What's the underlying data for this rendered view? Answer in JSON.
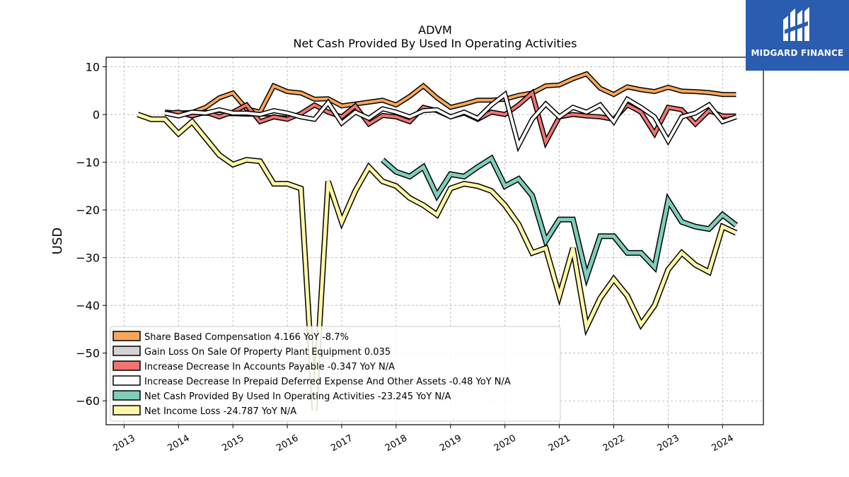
{
  "chart_data": {
    "type": "line",
    "title": "ADVM",
    "subtitle": "Net Cash Provided By Used In Operating Activities",
    "ylabel": "USD",
    "xlabel": "",
    "ylim": [
      -65,
      12
    ],
    "xlim": [
      2012.67,
      2024.75
    ],
    "yticks": [
      10,
      0,
      -10,
      -20,
      -30,
      -40,
      -50,
      -60
    ],
    "xticks": [
      "2013",
      "2014",
      "2015",
      "2016",
      "2017",
      "2018",
      "2019",
      "2020",
      "2021",
      "2022",
      "2023",
      "2024"
    ],
    "grid": true,
    "legend_position": "lower-left",
    "series": [
      {
        "name": "Share Based Compensation",
        "legend": "Share Based Compensation  4.166 YoY -8.7%",
        "color": "#f9a65a",
        "width": 4,
        "points": [
          [
            2013.75,
            0.5
          ],
          [
            2014.0,
            0.3
          ],
          [
            2014.25,
            0.4
          ],
          [
            2014.5,
            1.5
          ],
          [
            2014.75,
            3.5
          ],
          [
            2015.0,
            4.5
          ],
          [
            2015.25,
            1.2
          ],
          [
            2015.5,
            0.5
          ],
          [
            2015.75,
            6.0
          ],
          [
            2016.0,
            4.8
          ],
          [
            2016.25,
            4.5
          ],
          [
            2016.5,
            3.2
          ],
          [
            2016.75,
            3.3
          ],
          [
            2017.0,
            1.8
          ],
          [
            2017.25,
            2.2
          ],
          [
            2017.5,
            2.6
          ],
          [
            2017.75,
            3.0
          ],
          [
            2018.0,
            2.0
          ],
          [
            2018.25,
            3.8
          ],
          [
            2018.5,
            6.0
          ],
          [
            2018.75,
            3.5
          ],
          [
            2019.0,
            1.5
          ],
          [
            2019.25,
            2.2
          ],
          [
            2019.5,
            3.0
          ],
          [
            2019.75,
            3.0
          ],
          [
            2020.0,
            3.2
          ],
          [
            2020.25,
            4.0
          ],
          [
            2020.5,
            4.5
          ],
          [
            2020.75,
            6.0
          ],
          [
            2021.0,
            6.2
          ],
          [
            2021.25,
            7.5
          ],
          [
            2021.5,
            8.5
          ],
          [
            2021.75,
            5.5
          ],
          [
            2022.0,
            4.2
          ],
          [
            2022.25,
            5.8
          ],
          [
            2022.5,
            5.2
          ],
          [
            2022.75,
            4.8
          ],
          [
            2023.0,
            5.7
          ],
          [
            2023.25,
            4.9
          ],
          [
            2023.5,
            4.8
          ],
          [
            2023.75,
            4.6
          ],
          [
            2024.0,
            4.2
          ],
          [
            2024.25,
            4.2
          ]
        ]
      },
      {
        "name": "Gain Loss On Sale Of Property Plant Equipment",
        "legend": "Gain Loss On Sale Of Property Plant Equipment  0.035",
        "color": "#d3d3d3",
        "width": 3,
        "points": [
          [
            2013.75,
            0.3
          ],
          [
            2014.0,
            0.3
          ],
          [
            2014.25,
            0.2
          ],
          [
            2014.5,
            0.2
          ],
          [
            2014.75,
            0.1
          ],
          [
            2015.0,
            0.1
          ],
          [
            2015.25,
            0.0
          ],
          [
            2015.5,
            0.0
          ],
          [
            2015.75,
            0.1
          ],
          [
            2016.0,
            0.0
          ]
        ]
      },
      {
        "name": "Increase Decrease In Accounts Payable",
        "legend": "Increase Decrease In Accounts Payable  -0.347 YoY N/A",
        "color": "#f07470",
        "width": 4,
        "points": [
          [
            2013.75,
            0.2
          ],
          [
            2014.0,
            0.5
          ],
          [
            2014.25,
            -0.3
          ],
          [
            2014.5,
            0.5
          ],
          [
            2014.75,
            -0.5
          ],
          [
            2015.0,
            0.5
          ],
          [
            2015.25,
            2.0
          ],
          [
            2015.5,
            -1.5
          ],
          [
            2015.75,
            -0.5
          ],
          [
            2016.0,
            -1.0
          ],
          [
            2016.25,
            0.2
          ],
          [
            2016.5,
            2.0
          ],
          [
            2016.75,
            0.5
          ],
          [
            2017.0,
            -0.5
          ],
          [
            2017.25,
            1.8
          ],
          [
            2017.5,
            -2.0
          ],
          [
            2017.75,
            -0.2
          ],
          [
            2018.0,
            -0.5
          ],
          [
            2018.25,
            -1.5
          ],
          [
            2018.5,
            1.5
          ],
          [
            2018.75,
            0.8
          ],
          [
            2019.0,
            -0.5
          ],
          [
            2019.25,
            0.3
          ],
          [
            2019.5,
            -1.0
          ],
          [
            2019.75,
            0.5
          ],
          [
            2020.0,
            0.0
          ],
          [
            2020.25,
            2.0
          ],
          [
            2020.5,
            4.5
          ],
          [
            2020.75,
            -5.8
          ],
          [
            2021.0,
            -0.5
          ],
          [
            2021.25,
            0.0
          ],
          [
            2021.5,
            -0.3
          ],
          [
            2021.75,
            -0.5
          ],
          [
            2022.0,
            -1.0
          ],
          [
            2022.25,
            2.0
          ],
          [
            2022.5,
            0.5
          ],
          [
            2022.75,
            -4.0
          ],
          [
            2023.0,
            1.5
          ],
          [
            2023.25,
            1.0
          ],
          [
            2023.5,
            -2.0
          ],
          [
            2023.75,
            0.8
          ],
          [
            2024.0,
            -0.3
          ],
          [
            2024.25,
            -0.3
          ]
        ]
      },
      {
        "name": "Increase Decrease In Prepaid Deferred Expense And Other Assets",
        "legend": "Increase Decrease In Prepaid Deferred Expense And Other Assets  -0.48 YoY N/A",
        "color": "#ffffff",
        "width": 4,
        "points": [
          [
            2013.75,
            0.3
          ],
          [
            2014.0,
            -0.3
          ],
          [
            2014.25,
            0.5
          ],
          [
            2014.5,
            0.3
          ],
          [
            2014.75,
            1.0
          ],
          [
            2015.0,
            0.3
          ],
          [
            2015.25,
            0.3
          ],
          [
            2015.5,
            0.0
          ],
          [
            2015.75,
            0.8
          ],
          [
            2016.0,
            0.3
          ],
          [
            2016.25,
            -0.5
          ],
          [
            2016.5,
            -1.0
          ],
          [
            2016.75,
            2.5
          ],
          [
            2017.0,
            -1.8
          ],
          [
            2017.25,
            0.5
          ],
          [
            2017.5,
            -0.8
          ],
          [
            2017.75,
            1.2
          ],
          [
            2018.0,
            0.5
          ],
          [
            2018.25,
            -0.5
          ],
          [
            2018.5,
            0.8
          ],
          [
            2018.75,
            1.0
          ],
          [
            2019.0,
            -0.5
          ],
          [
            2019.25,
            0.5
          ],
          [
            2019.5,
            -0.8
          ],
          [
            2019.75,
            2.0
          ],
          [
            2020.0,
            4.2
          ],
          [
            2020.25,
            -6.5
          ],
          [
            2020.5,
            -1.0
          ],
          [
            2020.75,
            2.2
          ],
          [
            2021.0,
            -0.5
          ],
          [
            2021.25,
            1.5
          ],
          [
            2021.5,
            0.5
          ],
          [
            2021.75,
            2.0
          ],
          [
            2022.0,
            -1.5
          ],
          [
            2022.25,
            3.2
          ],
          [
            2022.5,
            1.5
          ],
          [
            2022.75,
            -0.5
          ],
          [
            2023.0,
            -5.5
          ],
          [
            2023.25,
            -0.5
          ],
          [
            2023.5,
            0.3
          ],
          [
            2023.75,
            2.0
          ],
          [
            2024.0,
            -1.5
          ],
          [
            2024.25,
            -0.5
          ]
        ]
      },
      {
        "name": "Net Cash Provided By Used In Operating Activities",
        "legend": "Net Cash Provided By Used In Operating Activities  -23.245 YoY N/A",
        "color": "#7fcdbb",
        "width": 5,
        "points": [
          [
            2017.75,
            -9.5
          ],
          [
            2018.0,
            -12.0
          ],
          [
            2018.25,
            -13.0
          ],
          [
            2018.5,
            -11.0
          ],
          [
            2018.75,
            -17.0
          ],
          [
            2019.0,
            -12.5
          ],
          [
            2019.25,
            -13.0
          ],
          [
            2019.5,
            -11.0
          ],
          [
            2019.75,
            -9.2
          ],
          [
            2020.0,
            -15.0
          ],
          [
            2020.25,
            -13.5
          ],
          [
            2020.5,
            -17.0
          ],
          [
            2020.75,
            -26.5
          ],
          [
            2021.0,
            -22.0
          ],
          [
            2021.25,
            -22.0
          ],
          [
            2021.5,
            -34.0
          ],
          [
            2021.75,
            -25.5
          ],
          [
            2022.0,
            -25.5
          ],
          [
            2022.25,
            -29.0
          ],
          [
            2022.5,
            -29.0
          ],
          [
            2022.75,
            -32.0
          ],
          [
            2023.0,
            -18.0
          ],
          [
            2023.25,
            -22.5
          ],
          [
            2023.5,
            -23.5
          ],
          [
            2023.75,
            -24.0
          ],
          [
            2024.0,
            -21.0
          ],
          [
            2024.25,
            -23.2
          ]
        ]
      },
      {
        "name": "Net Income Loss",
        "legend": "Net Income Loss  -24.787 YoY N/A",
        "color": "#fff7a8",
        "width": 5,
        "points": [
          [
            2013.25,
            0.0
          ],
          [
            2013.5,
            -1.0
          ],
          [
            2013.75,
            -1.0
          ],
          [
            2014.0,
            -4.0
          ],
          [
            2014.25,
            -1.5
          ],
          [
            2014.5,
            -5.0
          ],
          [
            2014.75,
            -8.5
          ],
          [
            2015.0,
            -10.5
          ],
          [
            2015.25,
            -9.5
          ],
          [
            2015.5,
            -9.8
          ],
          [
            2015.75,
            -14.5
          ],
          [
            2016.0,
            -14.5
          ],
          [
            2016.25,
            -15.5
          ],
          [
            2016.5,
            -62.0
          ],
          [
            2016.75,
            -14.0
          ],
          [
            2017.0,
            -22.5
          ],
          [
            2017.25,
            -16.0
          ],
          [
            2017.5,
            -11.0
          ],
          [
            2017.75,
            -14.0
          ],
          [
            2018.0,
            -15.0
          ],
          [
            2018.25,
            -17.5
          ],
          [
            2018.5,
            -19.0
          ],
          [
            2018.75,
            -21.0
          ],
          [
            2019.0,
            -15.5
          ],
          [
            2019.25,
            -14.5
          ],
          [
            2019.5,
            -15.0
          ],
          [
            2019.75,
            -16.0
          ],
          [
            2020.0,
            -19.0
          ],
          [
            2020.25,
            -23.0
          ],
          [
            2020.5,
            -29.0
          ],
          [
            2020.75,
            -28.0
          ],
          [
            2021.0,
            -38.0
          ],
          [
            2021.25,
            -28.0
          ],
          [
            2021.5,
            -44.5
          ],
          [
            2021.75,
            -38.5
          ],
          [
            2022.0,
            -34.5
          ],
          [
            2022.25,
            -38.0
          ],
          [
            2022.5,
            -44.0
          ],
          [
            2022.75,
            -40.0
          ],
          [
            2023.0,
            -32.5
          ],
          [
            2023.25,
            -29.0
          ],
          [
            2023.5,
            -31.5
          ],
          [
            2023.75,
            -33.0
          ],
          [
            2024.0,
            -23.5
          ],
          [
            2024.25,
            -24.8
          ]
        ]
      }
    ]
  },
  "logo": {
    "text": "MIDGARD FINANCE"
  }
}
